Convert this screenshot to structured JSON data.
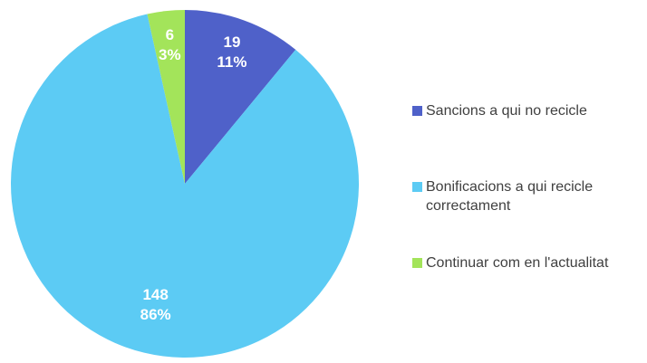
{
  "chart_data": {
    "type": "pie",
    "categories": [
      "Sancions a qui no recicle",
      "Bonificacions a qui recicle correctament",
      "Continuar com en l'actualitat"
    ],
    "values": [
      19,
      148,
      6
    ],
    "percent_labels": [
      "11%",
      "86%",
      "3%"
    ],
    "colors": [
      "#4f61c9",
      "#5ccbf4",
      "#a3e45a"
    ],
    "legend": "right"
  }
}
